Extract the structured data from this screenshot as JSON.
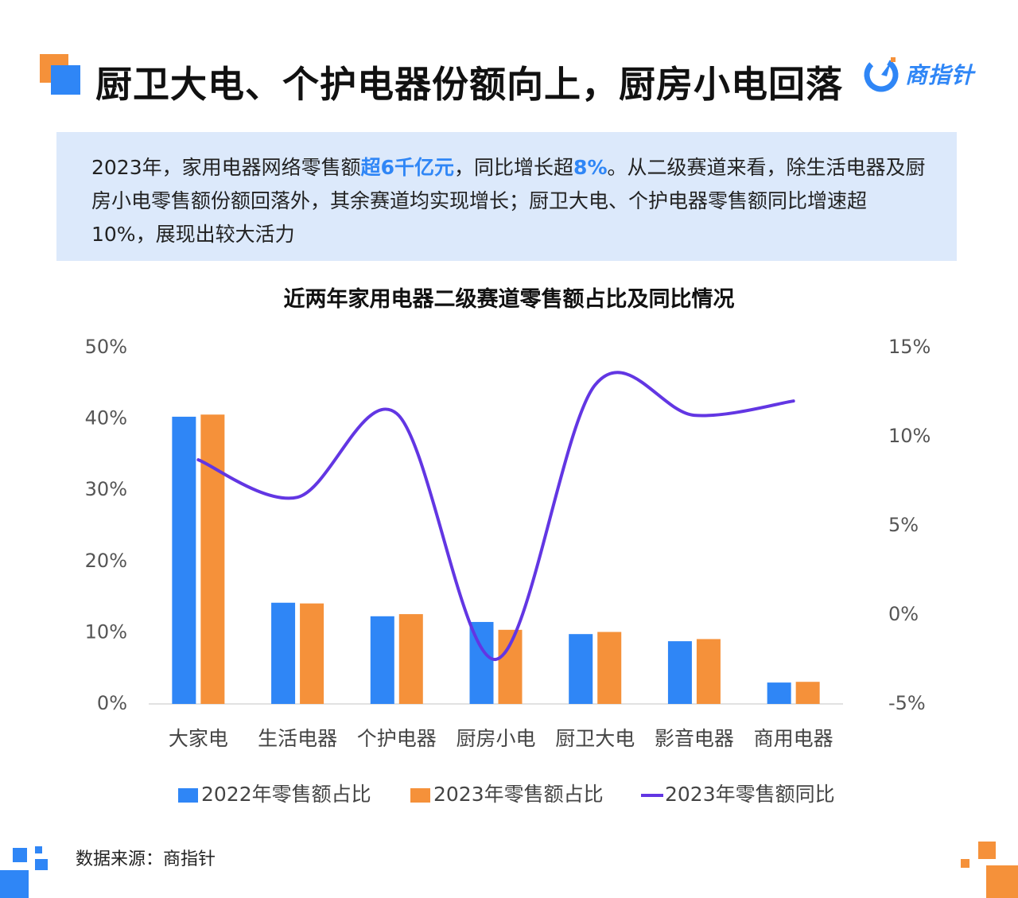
{
  "header": {
    "title": "厨卫大电、个护电器份额向上，厨房小电回落",
    "logo_text": "商指针",
    "logo_icon": "compass-needle-icon"
  },
  "summary": {
    "part1": "2023年，家用电器网络零售额",
    "hl1": "超6千亿元",
    "part2": "，同比增长超",
    "hl2": "8%",
    "part3": "。从二级赛道来看，除生活电器及厨房小电零售额份额回落外，其余赛道均实现增长；厨卫大电、个护电器零售额同比增速超10%，展现出较大活力"
  },
  "footer": {
    "source": "数据来源：商指针"
  },
  "colors": {
    "blue": "#2f86f6",
    "orange": "#f5913a",
    "purple": "#6236e3",
    "summary_bg": "#dce9fb"
  },
  "chart_data": {
    "type": "bar",
    "title": "近两年家用电器二级赛道零售额占比及同比情况",
    "categories": [
      "大家电",
      "生活电器",
      "个护电器",
      "厨房小电",
      "厨卫大电",
      "影音电器",
      "商用电器"
    ],
    "series": [
      {
        "name": "2022年零售额占比",
        "type": "bar",
        "axis": "left",
        "color": "#2f86f6",
        "values": [
          40.3,
          14.2,
          12.3,
          11.5,
          9.8,
          8.8,
          3.0
        ]
      },
      {
        "name": "2023年零售额占比",
        "type": "bar",
        "axis": "left",
        "color": "#f5913a",
        "values": [
          40.6,
          14.1,
          12.6,
          10.4,
          10.1,
          9.1,
          3.1
        ]
      },
      {
        "name": "2023年零售额同比",
        "type": "line",
        "axis": "right",
        "color": "#6236e3",
        "smooth": true,
        "values": [
          8.7,
          6.6,
          11.3,
          -2.5,
          12.9,
          11.2,
          12.0
        ]
      }
    ],
    "left_axis": {
      "ylim": [
        0,
        50
      ],
      "ticks": [
        0,
        10,
        20,
        30,
        40,
        50
      ],
      "tick_labels": [
        "0%",
        "10%",
        "20%",
        "30%",
        "40%",
        "50%"
      ]
    },
    "right_axis": {
      "ylim": [
        -5,
        15
      ],
      "ticks": [
        -5,
        0,
        5,
        10,
        15
      ],
      "tick_labels": [
        "-5%",
        "0%",
        "5%",
        "10%",
        "15%"
      ]
    },
    "grid": false,
    "legend_position": "bottom"
  }
}
